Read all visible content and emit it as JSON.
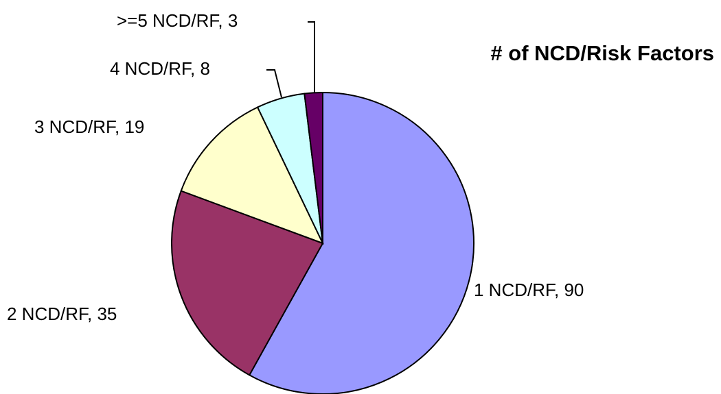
{
  "chart_data": {
    "type": "pie",
    "title": "# of NCD/Risk Factors",
    "values": [
      90,
      35,
      19,
      8,
      3
    ],
    "value_labels": [
      "1 NCD/RF, 90",
      "2 NCD/RF, 35",
      "3 NCD/RF, 19",
      "4 NCD/RF, 8",
      ">=5 NCD/RF, 3"
    ],
    "colors": [
      "#9999ff",
      "#993366",
      "#ffffcc",
      "#ccffff",
      "#660066"
    ]
  }
}
